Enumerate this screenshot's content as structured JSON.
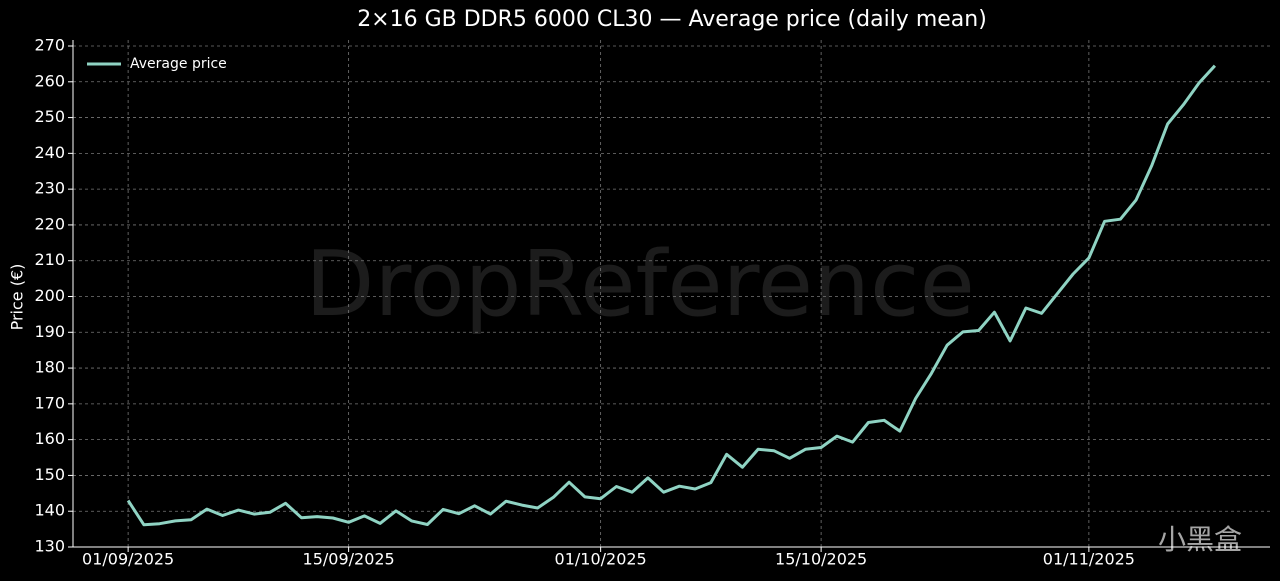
{
  "chart_data": {
    "type": "line",
    "title": "2×16 GB DDR5 6000 CL30 — Average price (daily mean)",
    "y_label": "Price (€)",
    "watermark": "DropReference",
    "logo_text": "小黑盒",
    "x": [
      "2025-09-01",
      "2025-09-02",
      "2025-09-03",
      "2025-09-04",
      "2025-09-05",
      "2025-09-06",
      "2025-09-07",
      "2025-09-08",
      "2025-09-09",
      "2025-09-10",
      "2025-09-11",
      "2025-09-12",
      "2025-09-13",
      "2025-09-14",
      "2025-09-15",
      "2025-09-16",
      "2025-09-17",
      "2025-09-18",
      "2025-09-19",
      "2025-09-20",
      "2025-09-21",
      "2025-09-22",
      "2025-09-23",
      "2025-09-24",
      "2025-09-25",
      "2025-09-26",
      "2025-09-27",
      "2025-09-28",
      "2025-09-29",
      "2025-09-30",
      "2025-10-01",
      "2025-10-02",
      "2025-10-03",
      "2025-10-04",
      "2025-10-05",
      "2025-10-06",
      "2025-10-07",
      "2025-10-08",
      "2025-10-09",
      "2025-10-10",
      "2025-10-11",
      "2025-10-12",
      "2025-10-13",
      "2025-10-14",
      "2025-10-15",
      "2025-10-16",
      "2025-10-17",
      "2025-10-18",
      "2025-10-19",
      "2025-10-20",
      "2025-10-21",
      "2025-10-22",
      "2025-10-23",
      "2025-10-24",
      "2025-10-25",
      "2025-10-26",
      "2025-10-27",
      "2025-10-28",
      "2025-10-29",
      "2025-10-30",
      "2025-10-31",
      "2025-11-01",
      "2025-11-02",
      "2025-11-03",
      "2025-11-04",
      "2025-11-05",
      "2025-11-06",
      "2025-11-07",
      "2025-11-08",
      "2025-11-09"
    ],
    "series": [
      {
        "name": "Average price",
        "color": "#8fd3c3",
        "values": [
          143,
          136.2,
          136.5,
          137.3,
          137.6,
          140.6,
          138.8,
          140.3,
          139.2,
          139.7,
          142.2,
          138.2,
          138.5,
          138.1,
          136.9,
          138.7,
          136.6,
          140.1,
          137.3,
          136.3,
          140.5,
          139.3,
          141.5,
          139.2,
          142.8,
          141.7,
          140.9,
          143.9,
          148.1,
          144,
          143.5,
          146.9,
          145.3,
          149.3,
          145.3,
          147,
          146.2,
          148,
          155.9,
          152.3,
          157.3,
          156.9,
          154.8,
          157.3,
          157.8,
          161,
          159.3,
          164.8,
          165.4,
          162.4,
          171.5,
          178.5,
          186.4,
          190.1,
          190.5,
          195.6,
          187.6,
          196.8,
          195.3,
          200.8,
          206.3,
          210.8,
          221,
          221.6,
          227,
          236.7,
          248.2,
          253.6,
          259.7,
          264.5
        ]
      }
    ],
    "ylim": [
      130,
      270
    ],
    "yticks": [
      130,
      140,
      150,
      160,
      170,
      180,
      190,
      200,
      210,
      220,
      230,
      240,
      250,
      260,
      270
    ],
    "xticks": [
      {
        "value": "2025-09-01",
        "label": "01/09/2025"
      },
      {
        "value": "2025-09-15",
        "label": "15/09/2025"
      },
      {
        "value": "2025-10-01",
        "label": "01/10/2025"
      },
      {
        "value": "2025-10-15",
        "label": "15/10/2025"
      },
      {
        "value": "2025-11-01",
        "label": "01/11/2025"
      }
    ],
    "grid": true,
    "legend": "upper left"
  }
}
